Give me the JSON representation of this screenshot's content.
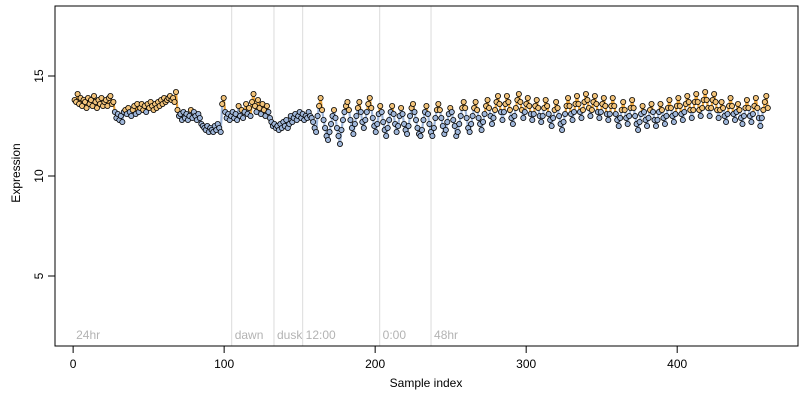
{
  "chart_data": {
    "type": "scatter",
    "title": "",
    "xlabel": "Sample index",
    "ylabel": "Expression",
    "xlim": [
      -12,
      480
    ],
    "ylim": [
      1.5,
      18.5
    ],
    "x_ticks": [
      0,
      100,
      200,
      300,
      400
    ],
    "y_ticks": [
      5,
      10,
      15
    ],
    "grid": false,
    "legend": "none",
    "colors": {
      "point_stroke": "#000000",
      "point_fill_high": "#f2c37a",
      "point_fill_low": "#9fb6d9",
      "line_high": "#e8a33d",
      "line_low": "#9fb6d9",
      "vertical_lines": "#dcdcdc",
      "vertical_labels": "#b3b3b3"
    },
    "vertical_markers": [
      {
        "x": 0,
        "label": "24hr"
      },
      {
        "x": 105,
        "label": "dawn"
      },
      {
        "x": 133,
        "label": "dusk"
      },
      {
        "x": 152,
        "label": "12:00"
      },
      {
        "x": 203,
        "label": "0:00"
      },
      {
        "x": 237,
        "label": "48hr"
      }
    ],
    "series": [
      {
        "x_start": 1,
        "x_end": 460,
        "y": [
          13.8,
          13.7,
          14.1,
          13.6,
          13.9,
          13.5,
          13.8,
          13.7,
          13.4,
          13.9,
          13.6,
          13.8,
          13.5,
          14.0,
          13.7,
          13.4,
          13.8,
          13.6,
          13.9,
          13.5,
          13.7,
          13.8,
          13.5,
          13.9,
          14.0,
          13.6,
          13.7,
          13.2,
          12.9,
          13.1,
          12.8,
          13.0,
          12.7,
          13.2,
          13.3,
          13.1,
          13.4,
          13.2,
          13.0,
          13.3,
          13.5,
          13.1,
          13.6,
          13.2,
          13.4,
          13.6,
          13.3,
          13.5,
          13.2,
          13.6,
          13.4,
          13.7,
          13.5,
          13.3,
          13.6,
          13.4,
          13.7,
          13.5,
          13.8,
          13.6,
          13.9,
          13.7,
          13.8,
          13.9,
          14.0,
          13.8,
          13.9,
          13.7,
          14.2,
          13.3,
          13.0,
          13.1,
          12.8,
          13.2,
          12.9,
          13.1,
          12.8,
          13.0,
          13.3,
          12.9,
          13.2,
          13.0,
          12.8,
          13.1,
          12.9,
          12.6,
          12.5,
          12.4,
          12.3,
          12.5,
          12.2,
          12.4,
          12.3,
          12.2,
          12.5,
          12.3,
          12.6,
          12.4,
          12.2,
          13.6,
          13.9,
          13.2,
          12.9,
          13.1,
          12.8,
          13.0,
          13.2,
          12.9,
          13.1,
          12.8,
          13.5,
          13.0,
          13.3,
          12.9,
          13.2,
          13.6,
          13.1,
          13.4,
          13.0,
          13.7,
          14.1,
          13.5,
          13.2,
          13.8,
          13.4,
          13.1,
          13.6,
          13.3,
          13.0,
          13.5,
          13.2,
          12.9,
          12.7,
          12.5,
          12.6,
          12.4,
          12.5,
          12.3,
          12.6,
          12.4,
          12.7,
          12.5,
          12.8,
          12.4,
          12.6,
          13.0,
          12.7,
          12.9,
          13.1,
          12.8,
          13.0,
          13.2,
          12.9,
          13.1,
          12.8,
          13.0,
          12.9,
          13.2,
          13.0,
          12.9,
          12.7,
          12.4,
          12.2,
          13.0,
          13.5,
          13.9,
          13.3,
          12.8,
          12.4,
          12.0,
          11.8,
          12.2,
          12.6,
          13.0,
          13.3,
          12.9,
          12.4,
          12.0,
          11.6,
          12.3,
          12.8,
          13.2,
          13.5,
          13.7,
          13.3,
          12.8,
          12.4,
          12.1,
          12.6,
          13.0,
          13.4,
          13.7,
          13.2,
          12.7,
          12.4,
          12.8,
          13.2,
          13.6,
          13.9,
          13.4,
          12.9,
          12.5,
          12.2,
          12.6,
          13.1,
          13.5,
          13.2,
          12.7,
          12.3,
          12.0,
          12.4,
          12.8,
          13.2,
          13.5,
          13.1,
          12.6,
          12.2,
          12.5,
          13.0,
          13.4,
          13.1,
          12.6,
          12.3,
          12.1,
          12.5,
          13.0,
          13.4,
          13.6,
          13.2,
          12.8,
          12.4,
          12.1,
          12.0,
          12.3,
          12.8,
          13.2,
          13.5,
          13.1,
          12.6,
          12.2,
          12.0,
          12.4,
          12.9,
          13.3,
          13.6,
          13.3,
          12.9,
          12.5,
          12.1,
          12.3,
          12.7,
          13.1,
          13.4,
          13.2,
          12.8,
          12.5,
          12.0,
          12.2,
          12.6,
          13.0,
          13.4,
          13.7,
          13.4,
          12.9,
          12.4,
          12.2,
          12.6,
          13.0,
          13.4,
          13.7,
          13.3,
          12.9,
          12.6,
          12.3,
          12.7,
          13.1,
          13.5,
          13.8,
          13.4,
          13.0,
          12.6,
          12.9,
          13.3,
          13.7,
          14.0,
          13.6,
          13.2,
          12.8,
          13.2,
          13.6,
          14.0,
          13.7,
          13.3,
          12.9,
          12.6,
          13.0,
          13.4,
          13.8,
          14.1,
          13.7,
          13.3,
          12.9,
          13.2,
          13.6,
          13.9,
          13.5,
          13.1,
          12.8,
          13.1,
          13.5,
          13.8,
          13.4,
          13.0,
          12.7,
          13.0,
          13.4,
          13.8,
          13.5,
          13.1,
          12.8,
          12.5,
          12.9,
          13.3,
          13.7,
          13.4,
          13.0,
          12.6,
          12.3,
          12.7,
          13.1,
          13.5,
          13.9,
          13.5,
          13.1,
          12.8,
          13.2,
          13.6,
          14.0,
          13.6,
          13.2,
          12.9,
          13.3,
          13.7,
          14.1,
          13.8,
          13.4,
          13.0,
          13.3,
          13.7,
          14.0,
          13.6,
          13.2,
          12.9,
          13.2,
          13.6,
          13.9,
          13.5,
          13.1,
          12.8,
          13.1,
          13.5,
          13.9,
          13.5,
          13.1,
          12.8,
          12.5,
          12.9,
          13.3,
          13.7,
          13.3,
          12.9,
          12.6,
          13.0,
          13.4,
          13.8,
          13.4,
          13.0,
          12.6,
          12.3,
          12.7,
          13.1,
          13.5,
          13.2,
          12.8,
          12.5,
          12.9,
          13.3,
          13.6,
          13.2,
          12.8,
          12.5,
          12.8,
          13.2,
          13.6,
          13.3,
          12.9,
          12.6,
          13.0,
          13.4,
          13.8,
          13.4,
          13.0,
          12.7,
          13.1,
          13.5,
          13.9,
          13.5,
          13.1,
          12.8,
          13.2,
          13.6,
          14.0,
          13.7,
          13.3,
          12.9,
          13.3,
          13.7,
          14.1,
          13.7,
          13.3,
          13.0,
          13.4,
          13.8,
          14.2,
          13.8,
          13.4,
          13.0,
          13.4,
          13.8,
          14.1,
          13.7,
          13.3,
          12.9,
          13.3,
          13.7,
          13.4,
          13.0,
          12.7,
          13.1,
          13.5,
          13.9,
          13.5,
          13.1,
          12.8,
          13.2,
          13.6,
          13.3,
          12.9,
          12.6,
          13.0,
          13.4,
          13.8,
          13.4,
          13.0,
          12.7,
          13.1,
          13.5,
          13.9,
          13.4,
          12.9,
          12.5,
          12.9,
          13.3,
          13.7,
          14.0,
          13.4
        ]
      }
    ]
  }
}
